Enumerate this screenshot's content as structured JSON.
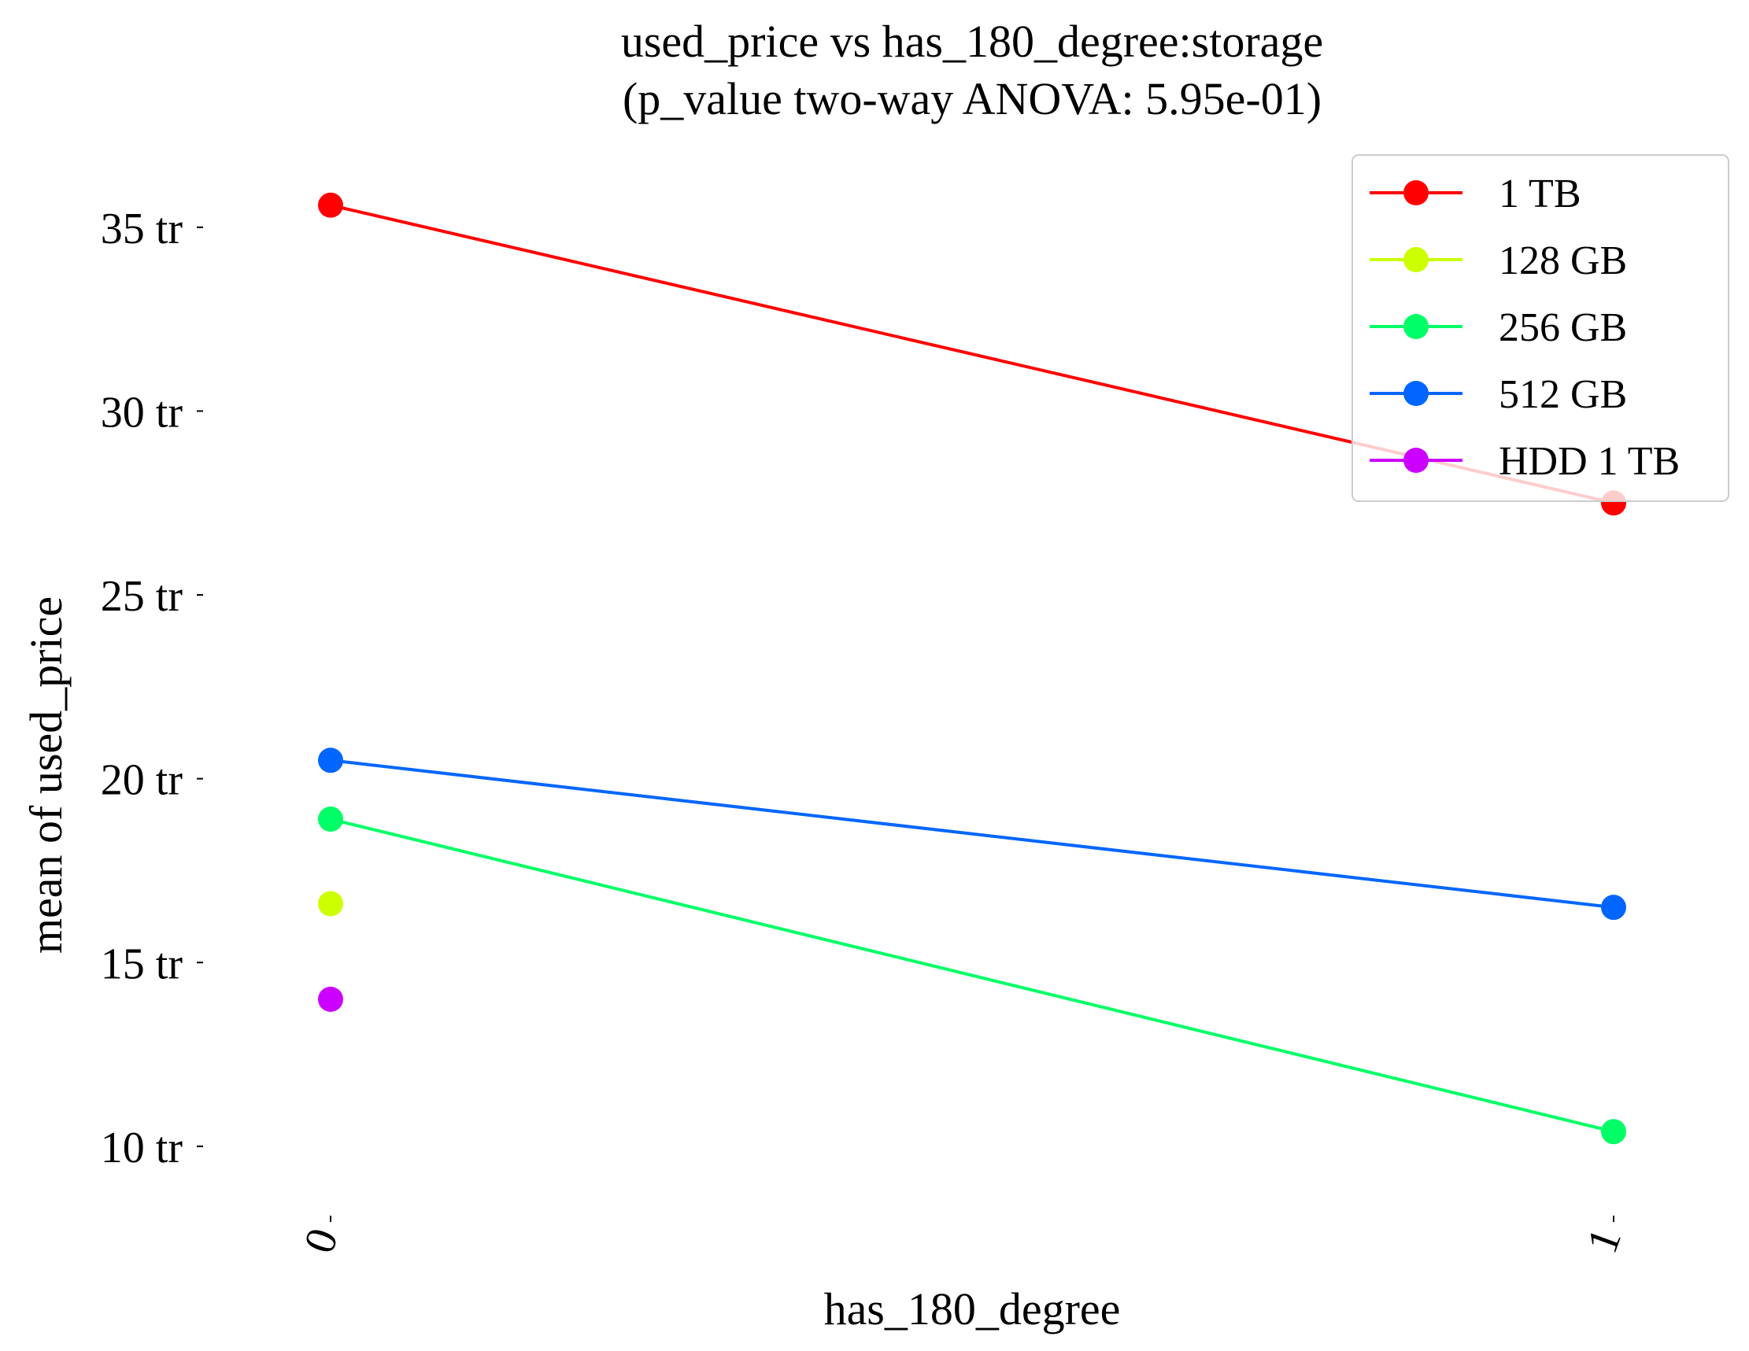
{
  "chart_data": {
    "type": "line",
    "title": "used_price vs has_180_degree:storage",
    "subtitle": "(p_value two-way ANOVA: 5.95e-01)",
    "xlabel": "has_180_degree",
    "ylabel": "mean of used_price",
    "categories": [
      "0",
      "1"
    ],
    "y_ticks": [
      {
        "value": 10000000,
        "label": "10 tr"
      },
      {
        "value": 15000000,
        "label": "15 tr"
      },
      {
        "value": 20000000,
        "label": "20 tr"
      },
      {
        "value": 25000000,
        "label": "25 tr"
      },
      {
        "value": 30000000,
        "label": "30 tr"
      },
      {
        "value": 35000000,
        "label": "35 tr"
      }
    ],
    "ylim": [
      7900000,
      37500000
    ],
    "grid": false,
    "legend_position": "top-right",
    "series": [
      {
        "name": "1 TB",
        "color": "#ff0000",
        "values": [
          35600000,
          27500000
        ]
      },
      {
        "name": "128 GB",
        "color": "#ccff00",
        "values": [
          16600000,
          null
        ]
      },
      {
        "name": "256 GB",
        "color": "#00ff66",
        "values": [
          18900000,
          10400000
        ]
      },
      {
        "name": "512 GB",
        "color": "#0066ff",
        "values": [
          20500000,
          16500000
        ]
      },
      {
        "name": "HDD 1 TB",
        "color": "#cc00ff",
        "values": [
          14000000,
          null
        ]
      }
    ]
  }
}
